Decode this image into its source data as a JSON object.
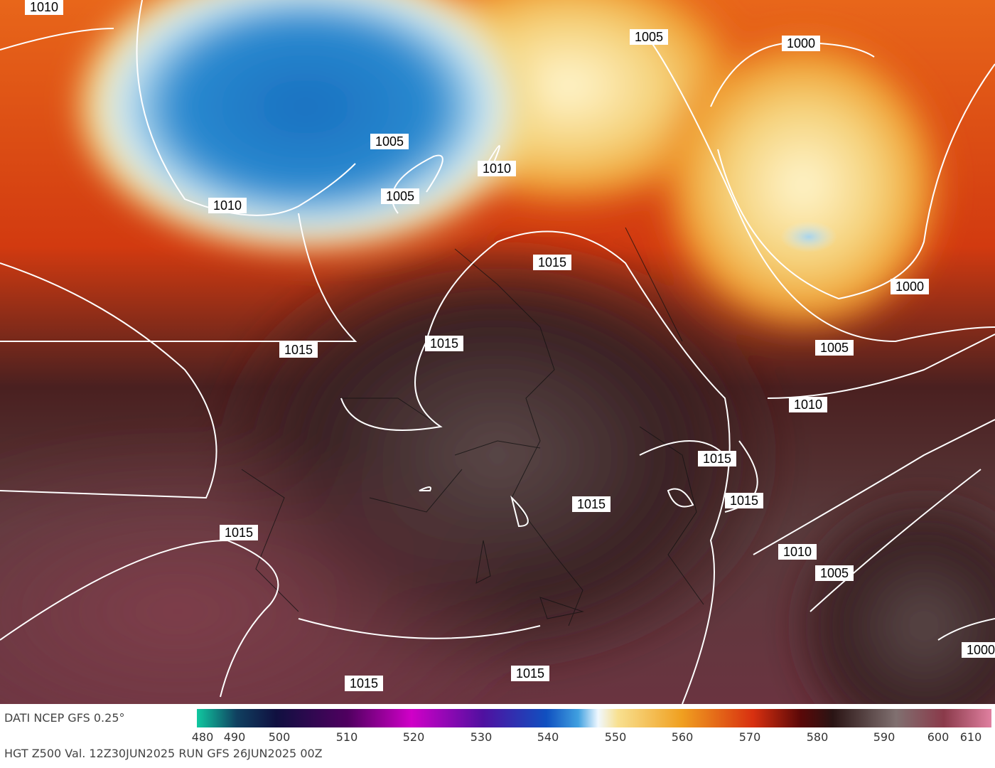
{
  "map": {
    "isobar_labels": [
      1010,
      1005,
      1000,
      1005,
      1010,
      1005,
      1010,
      1015,
      1000,
      1015,
      1015,
      1005,
      1010,
      1015,
      1015,
      1015,
      1015,
      1010,
      1005,
      1000,
      1015,
      1015
    ],
    "source": "DATI NCEP GFS 0.25°",
    "caption": "HGT Z500 Val. 12Z30JUN2025 RUN GFS 26JUN2025 00Z"
  },
  "colorbar": {
    "ticks": [
      480,
      490,
      500,
      510,
      520,
      530,
      540,
      550,
      560,
      570,
      580,
      590,
      600,
      610
    ]
  }
}
